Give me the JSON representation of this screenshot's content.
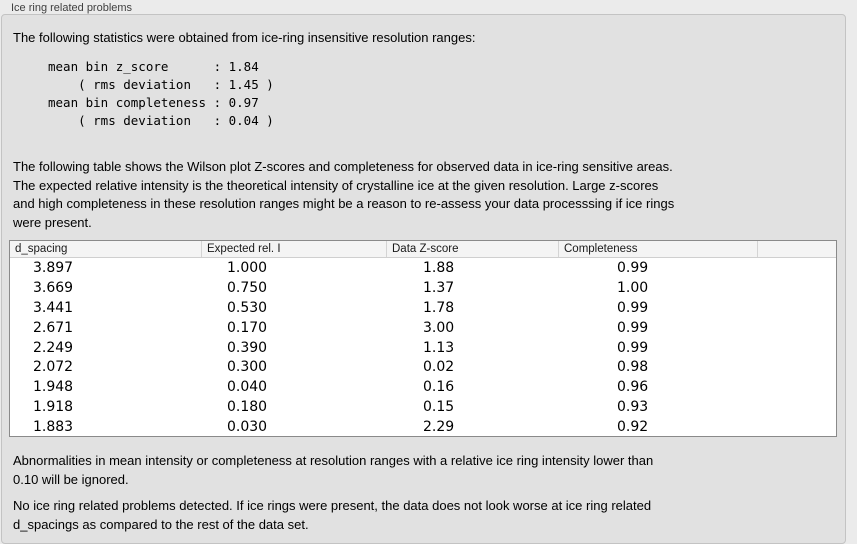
{
  "panel": {
    "title": "Ice ring related problems"
  },
  "intro": "The following statistics were obtained from ice-ring insensitive resolution ranges:",
  "stats_block": {
    "lines": [
      "mean bin z_score      : 1.84",
      "    ( rms deviation   : 1.45 )",
      "mean bin completeness : 0.97",
      "    ( rms deviation   : 0.04 )"
    ],
    "mean_bin_z_score": "1.84",
    "z_score_rms_deviation": "1.45",
    "mean_bin_completeness": "0.97",
    "completeness_rms_deviation": "0.04"
  },
  "description": {
    "lines": [
      "The following table shows the Wilson plot Z-scores and completeness for observed data in ice-ring sensitive areas.",
      "The expected relative intensity is the theoretical intensity of crystalline ice at the given resolution. Large z-scores",
      "and high completeness in these resolution ranges might be a reason to re-assess your data processsing if ice rings",
      "were present."
    ]
  },
  "table": {
    "headers": [
      "d_spacing",
      "Expected rel. I",
      "Data Z-score",
      "Completeness",
      ""
    ],
    "rows": [
      [
        "3.897",
        "1.000",
        "1.88",
        "0.99"
      ],
      [
        "3.669",
        "0.750",
        "1.37",
        "1.00"
      ],
      [
        "3.441",
        "0.530",
        "1.78",
        "0.99"
      ],
      [
        "2.671",
        "0.170",
        "3.00",
        "0.99"
      ],
      [
        "2.249",
        "0.390",
        "1.13",
        "0.99"
      ],
      [
        "2.072",
        "0.300",
        "0.02",
        "0.98"
      ],
      [
        "1.948",
        "0.040",
        "0.16",
        "0.96"
      ],
      [
        "1.918",
        "0.180",
        "0.15",
        "0.93"
      ],
      [
        "1.883",
        "0.030",
        "2.29",
        "0.92"
      ]
    ]
  },
  "ignore_note": {
    "lines": [
      "Abnormalities in mean intensity or completeness at resolution ranges with a relative ice ring intensity lower than",
      "0.10 will be ignored."
    ]
  },
  "result_note": {
    "lines": [
      "No ice ring related problems detected. If ice rings were present, the data does not look worse at ice ring related",
      "d_spacings as compared to the rest of the data set."
    ]
  },
  "colors": {
    "page_bg": "#ebebeb",
    "panel_bg": "#e1e1e1",
    "panel_border": "#c3c3c3",
    "table_border": "#8a8a8a",
    "table_header_bg": "#f4f4f4",
    "table_header_separator": "#d4d4d4",
    "text": "#000000",
    "label_text": "#3f3f3f"
  }
}
